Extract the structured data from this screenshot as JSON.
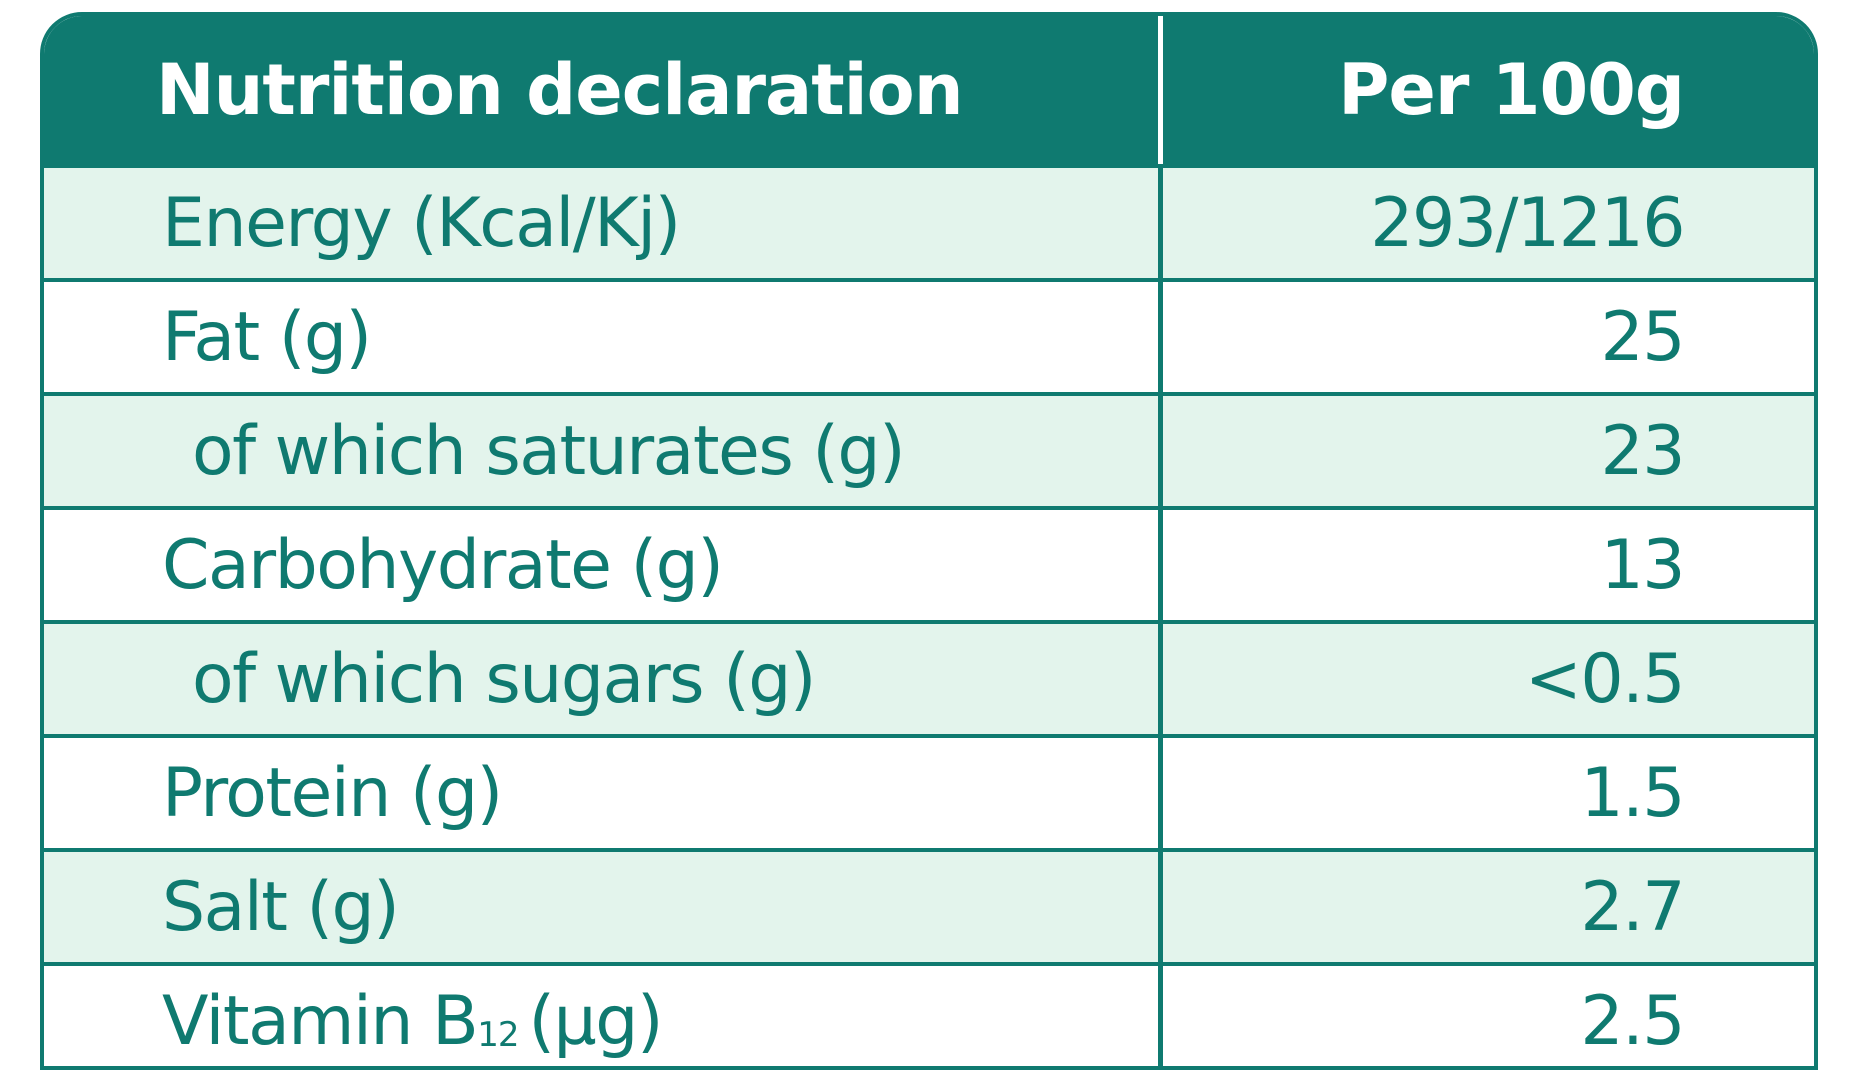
{
  "table": {
    "header": {
      "label": "Nutrition declaration",
      "value": "Per 100g"
    },
    "rows": [
      {
        "label": "Energy (Kcal/Kj)",
        "value": "293/1216"
      },
      {
        "label": "Fat (g)",
        "value": "25"
      },
      {
        "label": "of which saturates (g)",
        "value": "23"
      },
      {
        "label": "Carbohydrate (g)",
        "value": "13"
      },
      {
        "label": "of which sugars (g)",
        "value": "<0.5"
      },
      {
        "label": "Protein (g)",
        "value": "1.5"
      },
      {
        "label": "Salt (g)",
        "value": "2.7"
      },
      {
        "label_main": "Vitamin B",
        "label_sub": "12",
        "label_unit": "(µg)",
        "value": "2.5"
      }
    ]
  },
  "colors": {
    "brand_teal": "#0f7a70",
    "row_tint": "#e3f4ec",
    "header_text": "#ffffff"
  }
}
